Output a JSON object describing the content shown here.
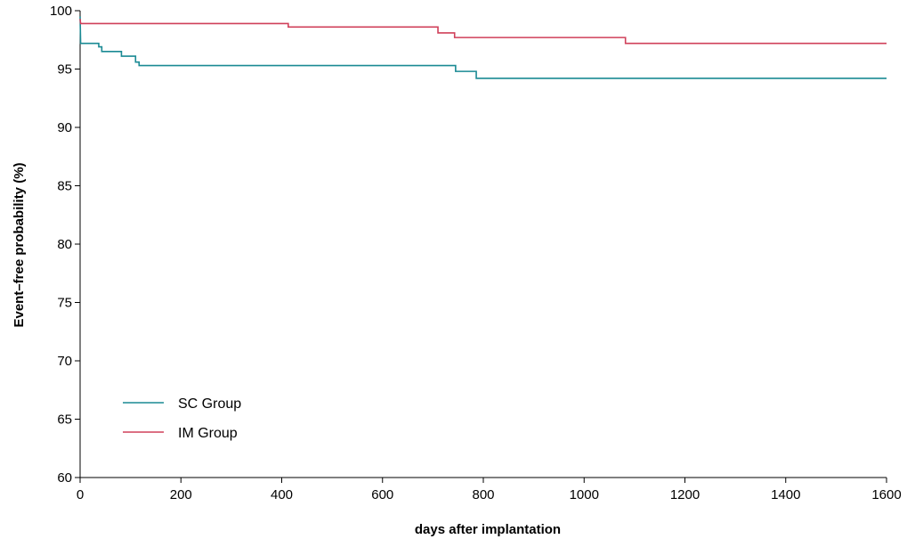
{
  "chart_data": {
    "type": "line",
    "step": true,
    "title": "",
    "xlabel": "days after implantation",
    "ylabel": "Event–free probability (%)",
    "xlim": [
      0,
      1600
    ],
    "ylim": [
      60,
      100
    ],
    "x_ticks": [
      0,
      200,
      400,
      600,
      800,
      1000,
      1200,
      1400,
      1600
    ],
    "y_ticks": [
      60,
      65,
      70,
      75,
      80,
      85,
      90,
      95,
      100
    ],
    "grid": false,
    "legend_position": "bottom-left",
    "series": [
      {
        "name": "SC Group",
        "color": "#1a8a94",
        "points": [
          [
            0,
            99.5
          ],
          [
            1,
            97.2
          ],
          [
            37,
            97.2
          ],
          [
            37,
            96.9
          ],
          [
            43,
            96.9
          ],
          [
            43,
            96.5
          ],
          [
            82,
            96.5
          ],
          [
            82,
            96.1
          ],
          [
            110,
            96.1
          ],
          [
            110,
            95.6
          ],
          [
            117,
            95.6
          ],
          [
            117,
            95.3
          ],
          [
            745,
            95.3
          ],
          [
            745,
            94.8
          ],
          [
            786,
            94.8
          ],
          [
            786,
            94.2
          ],
          [
            1600,
            94.2
          ]
        ]
      },
      {
        "name": "IM Group",
        "color": "#d0405a",
        "points": [
          [
            0,
            99.3
          ],
          [
            1,
            98.9
          ],
          [
            413,
            98.9
          ],
          [
            413,
            98.6
          ],
          [
            710,
            98.6
          ],
          [
            710,
            98.1
          ],
          [
            743,
            98.1
          ],
          [
            743,
            97.7
          ],
          [
            1082,
            97.7
          ],
          [
            1082,
            97.2
          ],
          [
            1600,
            97.2
          ]
        ]
      }
    ]
  }
}
